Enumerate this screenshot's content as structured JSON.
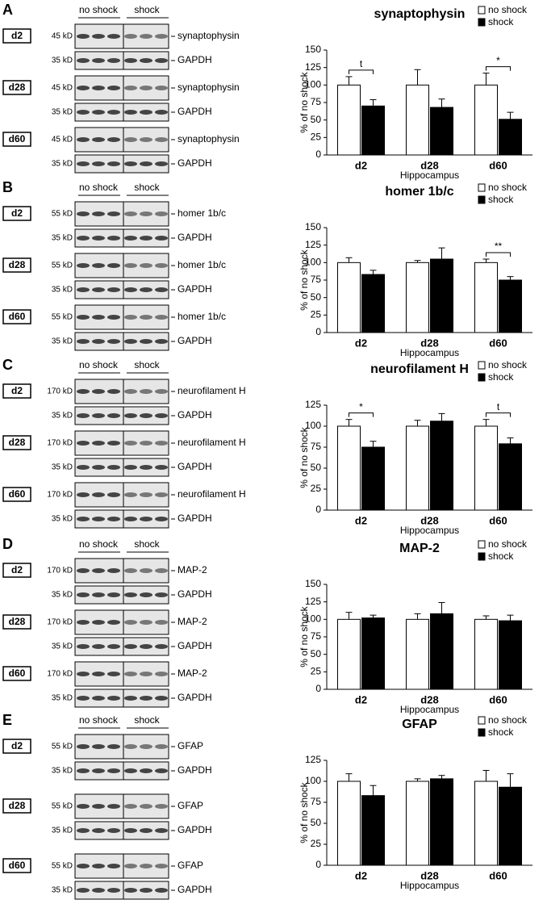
{
  "panel_letters": [
    "A",
    "B",
    "C",
    "D",
    "E"
  ],
  "blots": [
    {
      "groups": [
        "no shock",
        "shock"
      ],
      "rows": [
        {
          "day": "d2",
          "strips": [
            {
              "kd": "45 kD",
              "label": "synaptophysin"
            },
            {
              "kd": "35 kD",
              "label": "GAPDH"
            }
          ]
        },
        {
          "day": "d28",
          "strips": [
            {
              "kd": "45 kD",
              "label": "synaptophysin"
            },
            {
              "kd": "35 kD",
              "label": "GAPDH"
            }
          ]
        },
        {
          "day": "d60",
          "strips": [
            {
              "kd": "45 kD",
              "label": "synaptophysin"
            },
            {
              "kd": "35 kD",
              "label": "GAPDH"
            }
          ]
        }
      ]
    },
    {
      "groups": [
        "no shock",
        "shock"
      ],
      "rows": [
        {
          "day": "d2",
          "strips": [
            {
              "kd": "55 kD",
              "label": "homer 1b/c"
            },
            {
              "kd": "35 kD",
              "label": "GAPDH"
            }
          ]
        },
        {
          "day": "d28",
          "strips": [
            {
              "kd": "55 kD",
              "label": "homer 1b/c"
            },
            {
              "kd": "35 kD",
              "label": "GAPDH"
            }
          ]
        },
        {
          "day": "d60",
          "strips": [
            {
              "kd": "55 kD",
              "label": "homer 1b/c"
            },
            {
              "kd": "35 kD",
              "label": "GAPDH"
            }
          ]
        }
      ]
    },
    {
      "groups": [
        "no shock",
        "shock"
      ],
      "rows": [
        {
          "day": "d2",
          "strips": [
            {
              "kd": "170 kD",
              "label": "neurofilament H"
            },
            {
              "kd": "35 kD",
              "label": "GAPDH"
            }
          ]
        },
        {
          "day": "d28",
          "strips": [
            {
              "kd": "170 kD",
              "label": "neurofilament H"
            },
            {
              "kd": "35 kD",
              "label": "GAPDH"
            }
          ]
        },
        {
          "day": "d60",
          "strips": [
            {
              "kd": "170 kD",
              "label": "neurofilament H"
            },
            {
              "kd": "35 kD",
              "label": "GAPDH"
            }
          ]
        }
      ]
    },
    {
      "groups": [
        "no shock",
        "shock"
      ],
      "rows": [
        {
          "day": "d2",
          "strips": [
            {
              "kd": "170 kD",
              "label": "MAP-2"
            },
            {
              "kd": "35 kD",
              "label": "GAPDH"
            }
          ]
        },
        {
          "day": "d28",
          "strips": [
            {
              "kd": "170 kD",
              "label": "MAP-2"
            },
            {
              "kd": "35 kD",
              "label": "GAPDH"
            }
          ]
        },
        {
          "day": "d60",
          "strips": [
            {
              "kd": "170 kD",
              "label": "MAP-2"
            },
            {
              "kd": "35 kD",
              "label": "GAPDH"
            }
          ]
        }
      ]
    },
    {
      "groups": [
        "no shock",
        "shock"
      ],
      "rows": [
        {
          "day": "d2",
          "strips": [
            {
              "kd": "55 kD",
              "label": "GFAP"
            },
            {
              "kd": "35 kD",
              "label": "GAPDH"
            }
          ]
        },
        {
          "day": "d28",
          "strips": [
            {
              "kd": "55 kD",
              "label": "GFAP"
            },
            {
              "kd": "35 kD",
              "label": "GAPDH"
            }
          ]
        },
        {
          "day": "d60",
          "strips": [
            {
              "kd": "55 kD",
              "label": "GFAP"
            },
            {
              "kd": "35 kD",
              "label": "GAPDH"
            }
          ]
        }
      ]
    }
  ],
  "chart_data": [
    {
      "type": "bar",
      "title": "synaptophysin",
      "ylabel": "% of no shock",
      "xlabel": "Hippocampus",
      "categories": [
        "d2",
        "d28",
        "d60"
      ],
      "ylim": [
        0,
        150
      ],
      "yticks": [
        0,
        25,
        50,
        75,
        100,
        125,
        150
      ],
      "series": [
        {
          "name": "no shock",
          "color": "#ffffff",
          "values": [
            100,
            100,
            100
          ],
          "errors": [
            12,
            22,
            17
          ]
        },
        {
          "name": "shock",
          "color": "#000000",
          "values": [
            70,
            68,
            51
          ],
          "errors": [
            9,
            12,
            10
          ]
        }
      ],
      "annotations": [
        {
          "category": "d2",
          "text": "t"
        },
        {
          "category": "d60",
          "text": "*"
        }
      ]
    },
    {
      "type": "bar",
      "title": "homer 1b/c",
      "ylabel": "% of no shock",
      "xlabel": "Hippocampus",
      "categories": [
        "d2",
        "d28",
        "d60"
      ],
      "ylim": [
        0,
        150
      ],
      "yticks": [
        0,
        25,
        50,
        75,
        100,
        125,
        150
      ],
      "series": [
        {
          "name": "no shock",
          "color": "#ffffff",
          "values": [
            100,
            100,
            100
          ],
          "errors": [
            7,
            3,
            5
          ]
        },
        {
          "name": "shock",
          "color": "#000000",
          "values": [
            83,
            105,
            75
          ],
          "errors": [
            6,
            16,
            5
          ]
        }
      ],
      "annotations": [
        {
          "category": "d60",
          "text": "**"
        }
      ]
    },
    {
      "type": "bar",
      "title": "neurofilament H",
      "ylabel": "% of no shock",
      "xlabel": "Hippocampus",
      "categories": [
        "d2",
        "d28",
        "d60"
      ],
      "ylim": [
        0,
        125
      ],
      "yticks": [
        0,
        25,
        50,
        75,
        100,
        125
      ],
      "series": [
        {
          "name": "no shock",
          "color": "#ffffff",
          "values": [
            100,
            100,
            100
          ],
          "errors": [
            8,
            7,
            8
          ]
        },
        {
          "name": "shock",
          "color": "#000000",
          "values": [
            75,
            106,
            79
          ],
          "errors": [
            7,
            9,
            7
          ]
        }
      ],
      "annotations": [
        {
          "category": "d2",
          "text": "*"
        },
        {
          "category": "d60",
          "text": "t"
        }
      ]
    },
    {
      "type": "bar",
      "title": "MAP-2",
      "ylabel": "% of no shock",
      "xlabel": "Hippocampus",
      "categories": [
        "d2",
        "d28",
        "d60"
      ],
      "ylim": [
        0,
        150
      ],
      "yticks": [
        0,
        25,
        50,
        75,
        100,
        125,
        150
      ],
      "series": [
        {
          "name": "no shock",
          "color": "#ffffff",
          "values": [
            100,
            100,
            100
          ],
          "errors": [
            10,
            8,
            5
          ]
        },
        {
          "name": "shock",
          "color": "#000000",
          "values": [
            102,
            108,
            98
          ],
          "errors": [
            4,
            16,
            8
          ]
        }
      ],
      "annotations": []
    },
    {
      "type": "bar",
      "title": "GFAP",
      "ylabel": "% of no shock",
      "xlabel": "Hippocampus",
      "categories": [
        "d2",
        "d28",
        "d60"
      ],
      "ylim": [
        0,
        125
      ],
      "yticks": [
        0,
        25,
        50,
        75,
        100,
        125
      ],
      "series": [
        {
          "name": "no shock",
          "color": "#ffffff",
          "values": [
            100,
            100,
            100
          ],
          "errors": [
            9,
            3,
            13
          ]
        },
        {
          "name": "shock",
          "color": "#000000",
          "values": [
            83,
            103,
            93
          ],
          "errors": [
            12,
            4,
            16
          ]
        }
      ],
      "annotations": []
    }
  ]
}
